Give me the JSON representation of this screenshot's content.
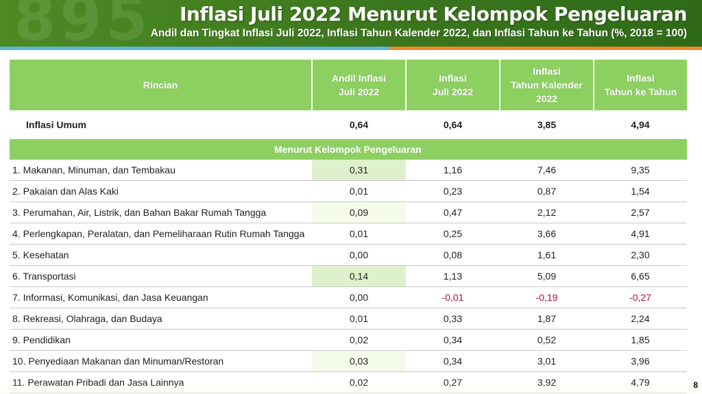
{
  "header": {
    "background_digits": "895",
    "title": "Inflasi Juli 2022 Menurut Kelompok Pengeluaran",
    "subtitle": "Andil dan Tingkat Inflasi Juli 2022, Inflasi Tahun Kalender 2022, dan Inflasi Tahun ke Tahun (%, 2018 = 100)"
  },
  "colors": {
    "header_green": "#3f7a1f",
    "table_green": "#8ecf62",
    "negative": "#b01030",
    "stripe_blue": "#59b7d6",
    "stripe_orange": "#f08a24"
  },
  "table": {
    "columns": [
      {
        "lines": [
          "Rincian"
        ]
      },
      {
        "lines": [
          "Andil Inflasi",
          "Juli 2022"
        ]
      },
      {
        "lines": [
          "Inflasi",
          "Juli 2022"
        ]
      },
      {
        "lines": [
          "Inflasi",
          "Tahun Kalender",
          "2022"
        ]
      },
      {
        "lines": [
          "Inflasi",
          "Tahun ke Tahun"
        ]
      }
    ],
    "umum": {
      "label": "Inflasi Umum",
      "andil": "0,64",
      "juli": "0,64",
      "kalender": "3,85",
      "yoy": "4,94"
    },
    "section_label": "Menurut Kelompok Pengeluaran",
    "rows": [
      {
        "label": "1. Makanan, Minuman, dan Tembakau",
        "andil": "0,31",
        "juli": "1,16",
        "kalender": "7,46",
        "yoy": "9,35"
      },
      {
        "label": "2. Pakaian dan Alas Kaki",
        "andil": "0,01",
        "juli": "0,23",
        "kalender": "0,87",
        "yoy": "1,54"
      },
      {
        "label": "3. Perumahan, Air, Listrik, dan Bahan Bakar Rumah Tangga",
        "andil": "0,09",
        "juli": "0,47",
        "kalender": "2,12",
        "yoy": "2,57"
      },
      {
        "label": "4. Perlengkapan, Peralatan, dan Pemeliharaan Rutin Rumah Tangga",
        "andil": "0,01",
        "juli": "0,25",
        "kalender": "3,66",
        "yoy": "4,91"
      },
      {
        "label": "5. Kesehatan",
        "andil": "0,00",
        "juli": "0,08",
        "kalender": "1,61",
        "yoy": "2,30"
      },
      {
        "label": "6. Transportasi",
        "andil": "0,14",
        "juli": "1,13",
        "kalender": "5,09",
        "yoy": "6,65"
      },
      {
        "label": "7. Informasi, Komunikasi, dan Jasa Keuangan",
        "andil": "0,00",
        "juli": "-0,01",
        "kalender": "-0,19",
        "yoy": "-0,27"
      },
      {
        "label": "8. Rekreasi, Olahraga, dan Budaya",
        "andil": "0,01",
        "juli": "0,33",
        "kalender": "1,87",
        "yoy": "2,24"
      },
      {
        "label": "9. Pendidikan",
        "andil": "0,02",
        "juli": "0,34",
        "kalender": "0,52",
        "yoy": "1,85"
      },
      {
        "label": "10. Penyediaan Makanan dan Minuman/Restoran",
        "andil": "0,03",
        "juli": "0,34",
        "kalender": "3,01",
        "yoy": "3,96"
      },
      {
        "label": "11. Perawatan Pribadi dan Jasa Lainnya",
        "andil": "0,02",
        "juli": "0,27",
        "kalender": "3,92",
        "yoy": "4,79"
      }
    ]
  },
  "page_number": "8"
}
